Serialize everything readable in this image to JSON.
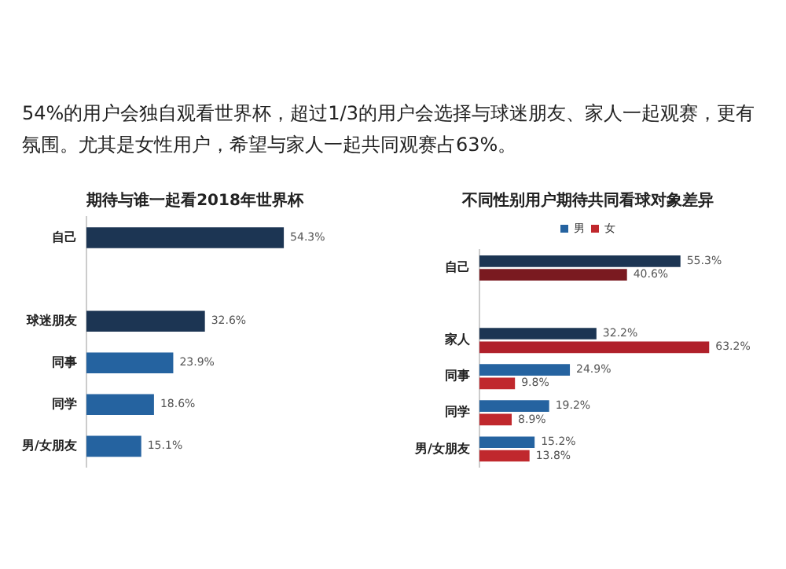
{
  "chart_data": [
    {
      "type": "other",
      "annotations": [
        "54%的用户会独自观看世界杯，超过1/3的用户会选择与球迷朋友、家人一起观赛，更有氛围。尤其是女性用户，希望与家人一起共同观赛占63%。"
      ]
    },
    {
      "type": "bar",
      "orientation": "horizontal",
      "title": "期待与谁一起看2018年世界杯",
      "categories": [
        "自己",
        null,
        "球迷朋友",
        "同事",
        "同学",
        "男/女朋友"
      ],
      "values": [
        54.3,
        null,
        32.6,
        23.9,
        18.6,
        15.1
      ],
      "colors": [
        "#1c3553",
        "#1c3553",
        "#1c3553",
        "#2563a0",
        "#2563a0",
        "#2563a0"
      ],
      "value_labels": [
        "54.3%",
        null,
        "32.6%",
        "23.9%",
        "18.6%",
        "15.1%"
      ]
    },
    {
      "type": "bar",
      "orientation": "horizontal",
      "title": "不同性别用户期待共同看球对象差异",
      "categories": [
        "自己",
        null,
        "家人",
        "同事",
        "同学",
        "男/女朋友"
      ],
      "series": [
        {
          "name": "男",
          "color": "#2563a0",
          "colors": [
            "#1c3553",
            null,
            "#1c3553",
            "#2563a0",
            "#2563a0",
            "#2563a0"
          ],
          "values": [
            55.3,
            null,
            32.2,
            24.9,
            19.2,
            15.2
          ],
          "value_labels": [
            "55.3%",
            null,
            "32.2%",
            "24.9%",
            "19.2%",
            "15.2%"
          ]
        },
        {
          "name": "女",
          "color": "#c0282d",
          "colors": [
            "#7a1a20",
            null,
            "#b0202a",
            "#c0282d",
            "#c0282d",
            "#c0282d"
          ],
          "values": [
            40.6,
            null,
            63.2,
            9.8,
            8.9,
            13.8
          ],
          "value_labels": [
            "40.6%",
            null,
            "63.2%",
            "9.8%",
            "8.9%",
            "13.8%"
          ]
        }
      ],
      "legend": "top"
    }
  ]
}
